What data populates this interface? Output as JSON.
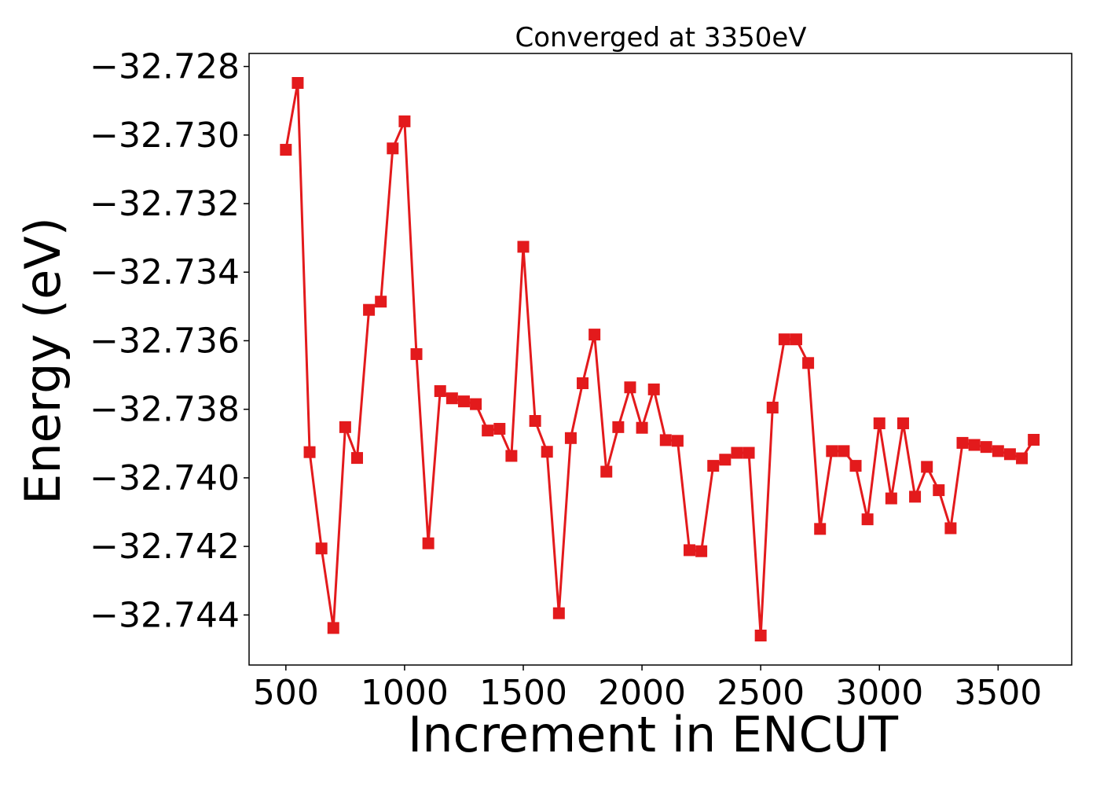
{
  "chart_data": {
    "type": "line",
    "title": "Converged at 3350eV",
    "xlabel": "Increment in ENCUT",
    "ylabel": "Energy (eV)",
    "xlim": [
      345,
      3810
    ],
    "ylim": [
      -32.74546,
      -32.72762
    ],
    "xticks": [
      500,
      1000,
      1500,
      2000,
      2500,
      3000,
      3500
    ],
    "xtick_labels": [
      "500",
      "1000",
      "1500",
      "2000",
      "2500",
      "3000",
      "3500"
    ],
    "yticks": [
      -32.728,
      -32.73,
      -32.732,
      -32.734,
      -32.736,
      -32.738,
      -32.74,
      -32.742,
      -32.744
    ],
    "ytick_labels": [
      "−32.728",
      "−32.730",
      "−32.732",
      "−32.734",
      "−32.736",
      "−32.738",
      "−32.740",
      "−32.742",
      "−32.744"
    ],
    "grid": false,
    "series": [
      {
        "color": "#e31a1c",
        "marker": "square",
        "x": [
          500,
          550,
          600,
          650,
          700,
          750,
          800,
          850,
          900,
          950,
          1000,
          1050,
          1100,
          1150,
          1200,
          1250,
          1300,
          1350,
          1400,
          1450,
          1500,
          1550,
          1600,
          1650,
          1700,
          1750,
          1800,
          1850,
          1900,
          1950,
          2000,
          2050,
          2100,
          2150,
          2200,
          2250,
          2300,
          2350,
          2400,
          2450,
          2500,
          2550,
          2600,
          2650,
          2700,
          2750,
          2800,
          2850,
          2900,
          2950,
          3000,
          3050,
          3100,
          3150,
          3200,
          3250,
          3300,
          3350,
          3400,
          3450,
          3500,
          3550,
          3600,
          3650
        ],
        "y": [
          -32.73043,
          -32.72848,
          -32.73925,
          -32.74206,
          -32.74438,
          -32.73852,
          -32.73942,
          -32.7351,
          -32.73486,
          -32.73039,
          -32.7296,
          -32.73639,
          -32.74191,
          -32.73747,
          -32.73768,
          -32.73777,
          -32.73785,
          -32.73862,
          -32.73857,
          -32.73936,
          -32.73326,
          -32.73834,
          -32.73924,
          -32.74395,
          -32.73884,
          -32.73724,
          -32.73582,
          -32.73982,
          -32.73852,
          -32.73736,
          -32.73854,
          -32.73742,
          -32.7389,
          -32.73892,
          -32.74211,
          -32.74214,
          -32.73965,
          -32.73947,
          -32.73927,
          -32.73927,
          -32.7446,
          -32.73795,
          -32.73596,
          -32.73596,
          -32.73665,
          -32.74149,
          -32.73922,
          -32.73922,
          -32.73965,
          -32.74121,
          -32.73841,
          -32.7406,
          -32.73841,
          -32.74055,
          -32.73968,
          -32.74036,
          -32.74147,
          -32.73898,
          -32.73904,
          -32.7391,
          -32.73922,
          -32.73931,
          -32.73943,
          -32.73889
        ]
      }
    ]
  }
}
